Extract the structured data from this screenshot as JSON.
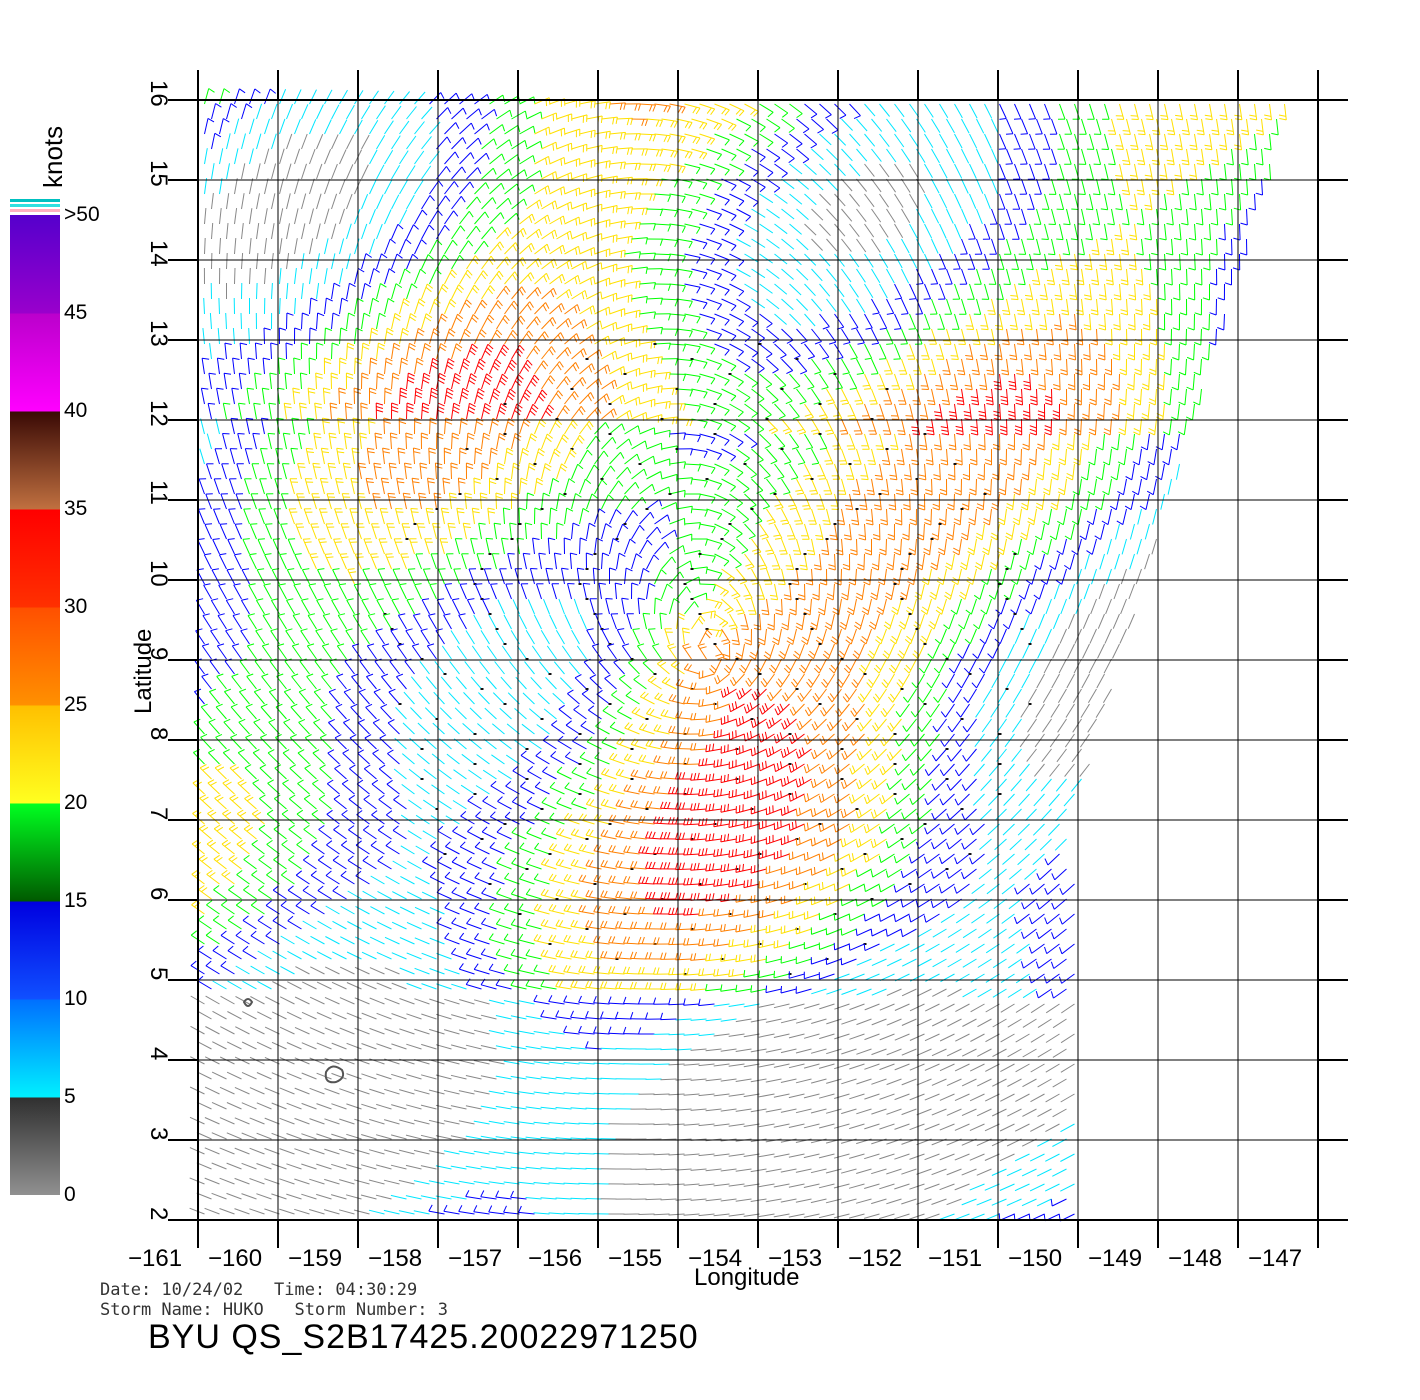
{
  "map": {
    "lon_min": -161,
    "lon_max": -147,
    "lat_min": 2,
    "lat_max": 16,
    "lon_ticks": [
      "−161",
      "−160",
      "−159",
      "−158",
      "−157",
      "−156",
      "−155",
      "−154",
      "−153",
      "−152",
      "−151",
      "−150",
      "−149",
      "−148",
      "−147"
    ],
    "lat_ticks": [
      "2",
      "3",
      "4",
      "5",
      "6",
      "7",
      "8",
      "9",
      "10",
      "11",
      "12",
      "13",
      "14",
      "15",
      "16"
    ],
    "xlabel": "Longitude",
    "ylabel": "Latitude",
    "grid": true,
    "storm_center": {
      "lon": -154.6,
      "lat": 9.0
    }
  },
  "colorbar": {
    "title": "knots",
    "ticks": [
      {
        "value": 0,
        "label": "0"
      },
      {
        "value": 5,
        "label": "5"
      },
      {
        "value": 10,
        "label": "10"
      },
      {
        "value": 15,
        "label": "15"
      },
      {
        "value": 20,
        "label": "20"
      },
      {
        "value": 25,
        "label": "25"
      },
      {
        "value": 30,
        "label": "30"
      },
      {
        "value": 35,
        "label": "35"
      },
      {
        "value": 40,
        "label": "40"
      },
      {
        "value": 45,
        "label": "45"
      },
      {
        "value": 50,
        "label": ">50"
      }
    ],
    "colors": [
      "#888888",
      "#00e6ff",
      "#0000ff",
      "#00ff00",
      "#ffe000",
      "#ff8000",
      "#ff0000",
      "#5a1a10",
      "#ff00ff",
      "#6600cc"
    ]
  },
  "info": {
    "line1": "Date: 10/24/02   Time: 04:30:29",
    "line2": "Storm Name: HUKO   Storm Number: 3",
    "file_id": "BYU QS_S2B17425.20022971250"
  }
}
